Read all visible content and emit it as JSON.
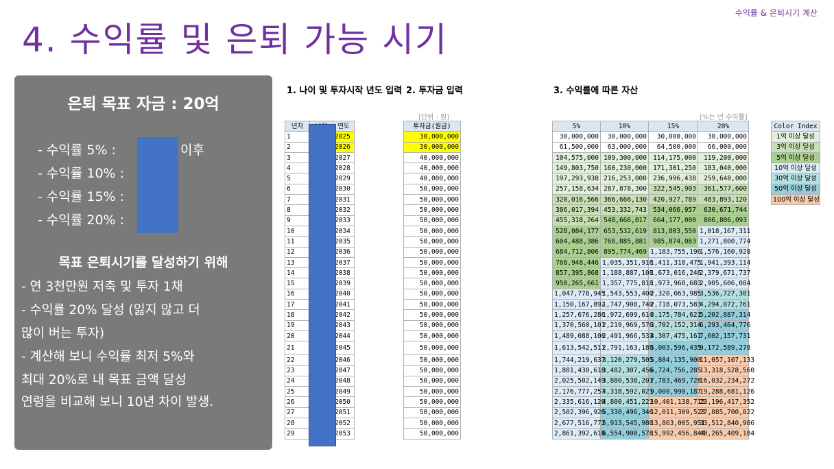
{
  "tag": "수익률 & 은퇴시기 계산",
  "title": "4. 수익률 및 은퇴 가능 시기",
  "panel": {
    "goal": "은퇴 목표 자금 : 20억",
    "rates": [
      "- 수익률    5% :",
      "- 수익률 10% :",
      "- 수익률 15% :",
      "- 수익률 20% :"
    ],
    "rate_suffix": "이후",
    "strategy_title": "목표 은퇴시기를 달성하기 위해",
    "strategy_lines": [
      " - 연 3천만원 저축 및 투자 1채",
      " - 수익률 20% 달성 (잃지 않고 더",
      "많이 버는 투자)",
      "- 계산해 보니 수익률 최저 5%와",
      "최대 20%로 내 목표 금액 달성",
      "연령을 비교해 보니 10년 차이 발생."
    ]
  },
  "section1": "1. 나이 및 투자시작 년도 입력",
  "section2": "2. 투자금 입력",
  "section3": "3. 수익률에 따른 자산",
  "unit_left": "[단위 : 원]",
  "unit_right": "[%는 년 수익률]",
  "left_headers": [
    "년차",
    "나이",
    "연도"
  ],
  "invest_header": "투자금(원금)",
  "rate_headers": [
    "5%",
    "10%",
    "15%",
    "20%"
  ],
  "colors": {
    "yellow": "#ffff00",
    "c1": "#e2efda",
    "c3": "#c6e0b4",
    "c5": "#a9d08e",
    "c10": "#ddebf7",
    "c30": "#b4dfe0",
    "c50": "#92cddc",
    "c100": "#f8cbad"
  },
  "color_index": {
    "header": "Color Index",
    "items": [
      {
        "label": "1억 이상 달성",
        "color": "#e2efda"
      },
      {
        "label": "3억 이상 달성",
        "color": "#c6e0b4"
      },
      {
        "label": "5억 이상 달성",
        "color": "#a9d08e"
      },
      {
        "label": "10억 이상 달성",
        "color": "#ddebf7"
      },
      {
        "label": "30억 이상 달성",
        "color": "#b4dfe0"
      },
      {
        "label": "50억 이상 달성",
        "color": "#92cddc"
      },
      {
        "label": "100억 이상 달성",
        "color": "#f8cbad"
      }
    ]
  },
  "rows": [
    {
      "n": "1",
      "year": "2025",
      "inv": "30,000,000",
      "v": [
        "30,000,000",
        "30,000,000",
        "30,000,000",
        "30,000,000"
      ]
    },
    {
      "n": "2",
      "year": "2026",
      "inv": "30,000,000",
      "v": [
        "61,500,000",
        "63,000,000",
        "64,500,000",
        "66,000,000"
      ]
    },
    {
      "n": "3",
      "year": "2027",
      "inv": "40,000,000",
      "v": [
        "104,575,000",
        "109,300,000",
        "114,175,000",
        "119,200,000"
      ]
    },
    {
      "n": "4",
      "year": "2028",
      "inv": "40,000,000",
      "v": [
        "149,803,750",
        "160,230,000",
        "171,301,250",
        "183,040,000"
      ]
    },
    {
      "n": "5",
      "year": "2029",
      "inv": "40,000,000",
      "v": [
        "197,293,938",
        "216,253,000",
        "236,996,438",
        "259,648,000"
      ]
    },
    {
      "n": "6",
      "year": "2030",
      "inv": "50,000,000",
      "v": [
        "257,158,634",
        "287,878,300",
        "322,545,903",
        "361,577,600"
      ]
    },
    {
      "n": "7",
      "year": "2031",
      "inv": "50,000,000",
      "v": [
        "320,016,566",
        "366,666,130",
        "420,927,789",
        "483,893,120"
      ]
    },
    {
      "n": "8",
      "year": "2032",
      "inv": "50,000,000",
      "v": [
        "386,017,394",
        "453,332,743",
        "534,066,957",
        "630,671,744"
      ]
    },
    {
      "n": "9",
      "year": "2033",
      "inv": "50,000,000",
      "v": [
        "455,318,264",
        "548,666,017",
        "664,177,000",
        "806,806,093"
      ]
    },
    {
      "n": "10",
      "year": "2034",
      "inv": "50,000,000",
      "v": [
        "528,084,177",
        "653,532,619",
        "813,803,550",
        "1,018,167,311"
      ]
    },
    {
      "n": "11",
      "year": "2035",
      "inv": "50,000,000",
      "v": [
        "604,488,386",
        "768,885,881",
        "985,874,083",
        "1,271,800,774"
      ]
    },
    {
      "n": "12",
      "year": "2036",
      "inv": "50,000,000",
      "v": [
        "684,712,806",
        "895,774,469",
        "1,183,755,196",
        "1,576,160,928"
      ]
    },
    {
      "n": "13",
      "year": "2037",
      "inv": "50,000,000",
      "v": [
        "768,948,446",
        "1,035,351,916",
        "1,411,318,475",
        "1,941,393,114"
      ]
    },
    {
      "n": "14",
      "year": "2038",
      "inv": "50,000,000",
      "v": [
        "857,395,868",
        "1,188,887,108",
        "1,673,016,246",
        "2,379,671,737"
      ]
    },
    {
      "n": "15",
      "year": "2039",
      "inv": "50,000,000",
      "v": [
        "950,265,661",
        "1,357,775,818",
        "1,973,968,683",
        "2,905,606,084"
      ]
    },
    {
      "n": "16",
      "year": "2040",
      "inv": "50,000,000",
      "v": [
        "1,047,778,945",
        "1,543,553,400",
        "2,320,063,985",
        "3,536,727,301"
      ]
    },
    {
      "n": "17",
      "year": "2041",
      "inv": "50,000,000",
      "v": [
        "1,150,167,892",
        "1,747,908,740",
        "2,718,073,583",
        "4,294,072,761"
      ]
    },
    {
      "n": "18",
      "year": "2042",
      "inv": "50,000,000",
      "v": [
        "1,257,676,286",
        "1,972,699,614",
        "3,175,784,621",
        "5,202,887,314"
      ]
    },
    {
      "n": "19",
      "year": "2043",
      "inv": "50,000,000",
      "v": [
        "1,370,560,101",
        "2,219,969,576",
        "3,702,152,314",
        "6,293,464,776"
      ]
    },
    {
      "n": "20",
      "year": "2044",
      "inv": "50,000,000",
      "v": [
        "1,489,088,106",
        "2,491,966,533",
        "4,307,475,161",
        "7,602,157,731"
      ]
    },
    {
      "n": "21",
      "year": "2045",
      "inv": "50,000,000",
      "v": [
        "1,613,542,511",
        "2,791,163,186",
        "5,003,596,435",
        "9,172,589,278"
      ]
    },
    {
      "n": "22",
      "year": "2046",
      "inv": "50,000,000",
      "v": [
        "1,744,219,637",
        "3,120,279,505",
        "5,804,135,900",
        "11,057,107,133"
      ]
    },
    {
      "n": "23",
      "year": "2047",
      "inv": "50,000,000",
      "v": [
        "1,881,430,618",
        "3,482,307,456",
        "6,724,756,285",
        "13,318,528,560"
      ]
    },
    {
      "n": "24",
      "year": "2048",
      "inv": "50,000,000",
      "v": [
        "2,025,502,149",
        "3,880,538,201",
        "7,783,469,728",
        "16,032,234,272"
      ]
    },
    {
      "n": "25",
      "year": "2049",
      "inv": "50,000,000",
      "v": [
        "2,176,777,257",
        "4,318,592,021",
        "9,000,990,187",
        "19,288,681,126"
      ]
    },
    {
      "n": "26",
      "year": "2050",
      "inv": "50,000,000",
      "v": [
        "2,335,616,120",
        "4,800,451,223",
        "10,401,138,715",
        "23,196,417,352"
      ]
    },
    {
      "n": "27",
      "year": "2051",
      "inv": "50,000,000",
      "v": [
        "2,502,396,926",
        "5,330,496,346",
        "12,011,309,523",
        "27,885,700,822"
      ]
    },
    {
      "n": "28",
      "year": "2052",
      "inv": "50,000,000",
      "v": [
        "2,677,516,772",
        "5,913,545,980",
        "13,863,005,951",
        "33,512,840,986"
      ]
    },
    {
      "n": "29",
      "year": "2053",
      "inv": "50,000,000",
      "v": [
        "2,861,392,610",
        "6,554,900,578",
        "15,992,456,844",
        "40,265,409,184"
      ]
    }
  ]
}
